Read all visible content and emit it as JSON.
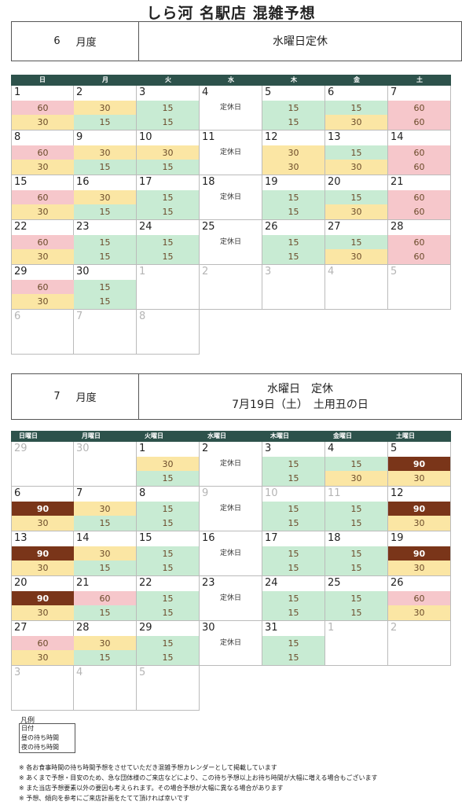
{
  "title": "しら河 名駅店 混雑予想",
  "legend": {
    "title": "凡例",
    "items": [
      "日付",
      "昼の待ち時間",
      "夜の待ち時間"
    ]
  },
  "notes": [
    "※ 各お食事時間の待ち時間予想をさせていただき混雑予想カレンダーとして掲載しています",
    "※ あくまで予想・目安のため、急な団体様のご来店などにより、この待ち予想以上お待ち時間が大幅に増える場合もございます",
    "※ また当店予想要素以外の要因も考えられます。その場合予想が大幅に異なる場合があります",
    "※ 予想、傾向を参考にご来店計画をたてて頂ければ幸いです"
  ],
  "closed_label": "定休日",
  "colors": {
    "60": "#f6c7cb",
    "30": "#fbe6a4",
    "15": "#c8ebd3",
    "90": "#7a3519",
    "header": "#2d524b"
  },
  "june": {
    "month": "6",
    "month_suffix": "月度",
    "note": [
      "水曜日定休"
    ],
    "weekdays": [
      "日",
      "月",
      "火",
      "水",
      "木",
      "金",
      "土"
    ],
    "weeks": [
      [
        {
          "d": "1",
          "a": "60",
          "b": "30"
        },
        {
          "d": "2",
          "a": "30",
          "b": "15"
        },
        {
          "d": "3",
          "a": "15",
          "b": "15"
        },
        {
          "d": "4",
          "closed": true
        },
        {
          "d": "5",
          "a": "15",
          "b": "15"
        },
        {
          "d": "6",
          "a": "15",
          "b": "30"
        },
        {
          "d": "7",
          "a": "60",
          "b": "60"
        }
      ],
      [
        {
          "d": "8",
          "a": "60",
          "b": "30"
        },
        {
          "d": "9",
          "a": "30",
          "b": "15"
        },
        {
          "d": "10",
          "a": "30",
          "b": "15"
        },
        {
          "d": "11",
          "closed": true
        },
        {
          "d": "12",
          "a": "30",
          "b": "30"
        },
        {
          "d": "13",
          "a": "15",
          "b": "30"
        },
        {
          "d": "14",
          "a": "60",
          "b": "60"
        }
      ],
      [
        {
          "d": "15",
          "a": "60",
          "b": "30"
        },
        {
          "d": "16",
          "a": "30",
          "b": "15"
        },
        {
          "d": "17",
          "a": "15",
          "b": "15"
        },
        {
          "d": "18",
          "closed": true
        },
        {
          "d": "19",
          "a": "15",
          "b": "15"
        },
        {
          "d": "20",
          "a": "15",
          "b": "30"
        },
        {
          "d": "21",
          "a": "60",
          "b": "60"
        }
      ],
      [
        {
          "d": "22",
          "a": "60",
          "b": "30"
        },
        {
          "d": "23",
          "a": "15",
          "b": "15"
        },
        {
          "d": "24",
          "a": "15",
          "b": "15"
        },
        {
          "d": "25",
          "closed": true
        },
        {
          "d": "26",
          "a": "15",
          "b": "15"
        },
        {
          "d": "27",
          "a": "15",
          "b": "30"
        },
        {
          "d": "28",
          "a": "60",
          "b": "60"
        }
      ],
      [
        {
          "d": "29",
          "a": "60",
          "b": "30"
        },
        {
          "d": "30",
          "a": "15",
          "b": "15"
        },
        {
          "d": "1",
          "dim": true
        },
        {
          "d": "2",
          "dim": true
        },
        {
          "d": "3",
          "dim": true
        },
        {
          "d": "4",
          "dim": true
        },
        {
          "d": "5",
          "dim": true
        }
      ],
      [
        {
          "d": "6",
          "dim": true
        },
        {
          "d": "7",
          "dim": true
        },
        {
          "d": "8",
          "dim": true
        },
        {
          "blank": true
        },
        {
          "blank": true
        },
        {
          "blank": true
        },
        {
          "blank": true
        }
      ]
    ]
  },
  "july": {
    "month": "7",
    "month_suffix": "月度",
    "note": [
      "水曜日　定休",
      "7月19日（土）　土用丑の日"
    ],
    "weekdays": [
      "日曜日",
      "月曜日",
      "火曜日",
      "水曜日",
      "木曜日",
      "金曜日",
      "土曜日"
    ],
    "weeks": [
      [
        {
          "d": "29",
          "dim": true
        },
        {
          "d": "30",
          "dim": true
        },
        {
          "d": "1",
          "a": "30",
          "b": "15"
        },
        {
          "d": "2",
          "closed": true
        },
        {
          "d": "3",
          "a": "15",
          "b": "15"
        },
        {
          "d": "4",
          "a": "15",
          "b": "30"
        },
        {
          "d": "5",
          "a": "90",
          "b": "30"
        }
      ],
      [
        {
          "d": "6",
          "a": "90",
          "b": "30"
        },
        {
          "d": "7",
          "a": "30",
          "b": "15"
        },
        {
          "d": "8",
          "a": "15",
          "b": "15"
        },
        {
          "d": "9",
          "dim": true,
          "closed": true
        },
        {
          "d": "10",
          "dim": true,
          "a": "15",
          "b": "15"
        },
        {
          "d": "11",
          "dim": true,
          "a": "15",
          "b": "15"
        },
        {
          "d": "12",
          "a": "90",
          "b": "30"
        }
      ],
      [
        {
          "d": "13",
          "a": "90",
          "b": "30"
        },
        {
          "d": "14",
          "a": "30",
          "b": "15"
        },
        {
          "d": "15",
          "a": "15",
          "b": "15"
        },
        {
          "d": "16",
          "closed": true
        },
        {
          "d": "17",
          "a": "15",
          "b": "15"
        },
        {
          "d": "18",
          "a": "15",
          "b": "15"
        },
        {
          "d": "19",
          "a": "90",
          "b": "30"
        }
      ],
      [
        {
          "d": "20",
          "a": "90",
          "b": "30"
        },
        {
          "d": "21",
          "a": "60",
          "b": "15"
        },
        {
          "d": "22",
          "a": "15",
          "b": "15"
        },
        {
          "d": "23",
          "closed": true
        },
        {
          "d": "24",
          "a": "15",
          "b": "15"
        },
        {
          "d": "25",
          "a": "15",
          "b": "15"
        },
        {
          "d": "26",
          "a": "60",
          "b": "30"
        }
      ],
      [
        {
          "d": "27",
          "a": "60",
          "b": "30"
        },
        {
          "d": "28",
          "a": "30",
          "b": "15"
        },
        {
          "d": "29",
          "a": "15",
          "b": "15"
        },
        {
          "d": "30",
          "closed": true
        },
        {
          "d": "31",
          "a": "15",
          "b": "15"
        },
        {
          "d": "1",
          "dim": true
        },
        {
          "d": "2",
          "dim": true
        }
      ],
      [
        {
          "d": "3",
          "dim": true
        },
        {
          "d": "4",
          "dim": true
        },
        {
          "d": "5",
          "dim": true
        },
        {
          "blank": true
        },
        {
          "blank": true
        },
        {
          "blank": true
        },
        {
          "blank": true
        }
      ]
    ]
  }
}
